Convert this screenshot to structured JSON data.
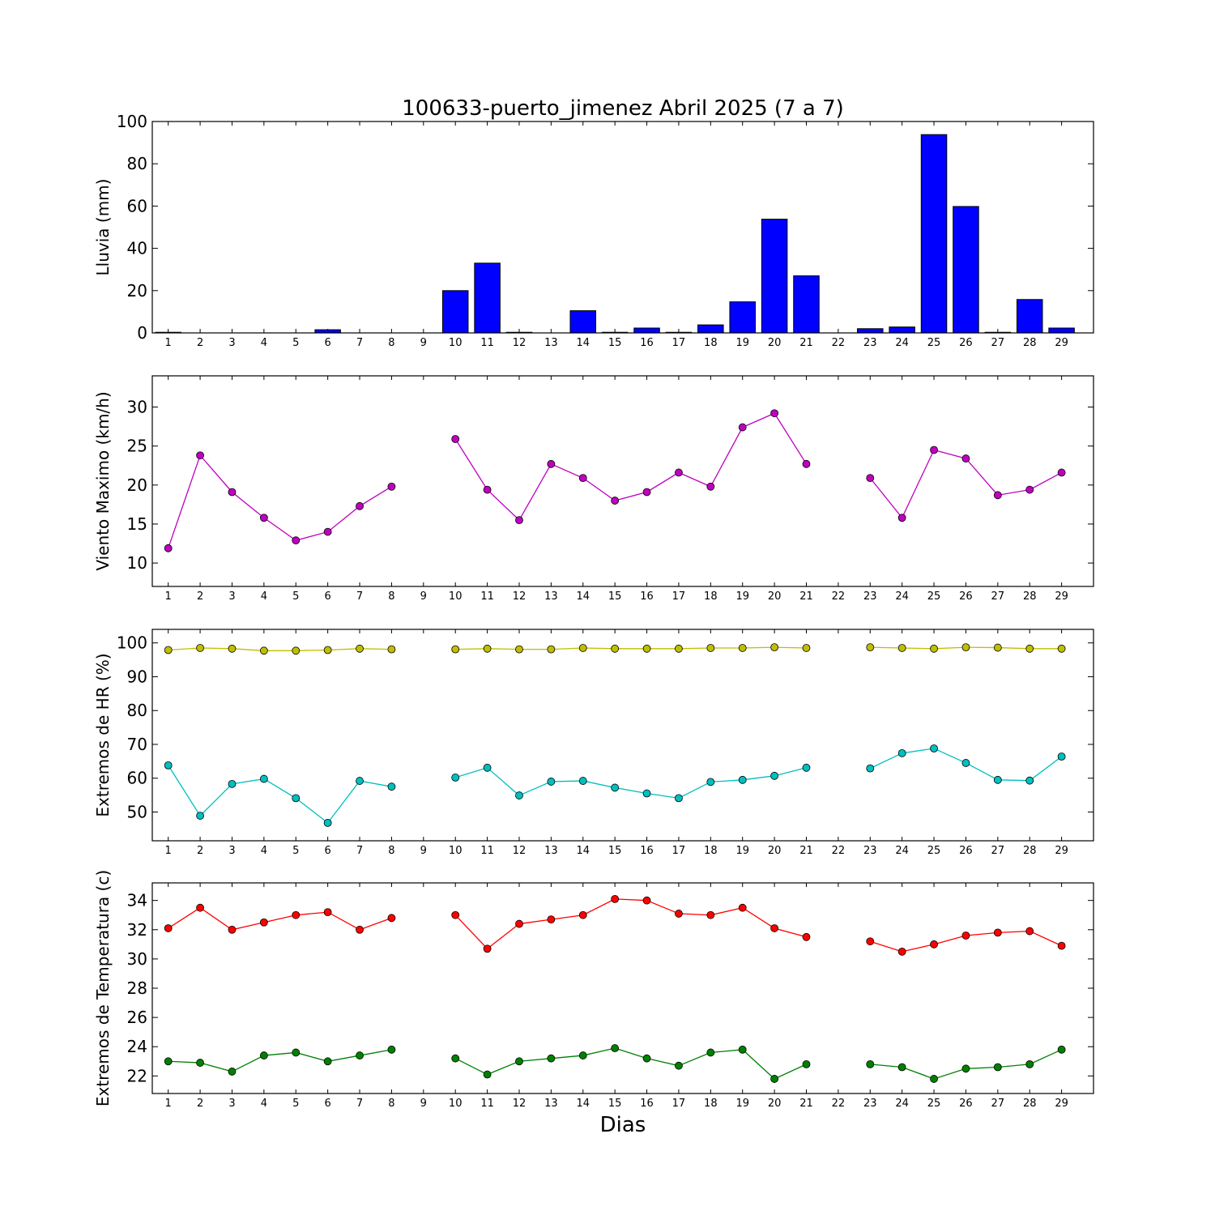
{
  "chart_data": {
    "title": "100633-puerto_jimenez Abril 2025  (7 a 7)",
    "xlabel": "Dias",
    "days": [
      1,
      2,
      3,
      4,
      5,
      6,
      7,
      8,
      9,
      10,
      11,
      12,
      13,
      14,
      15,
      16,
      17,
      18,
      19,
      20,
      21,
      22,
      23,
      24,
      25,
      26,
      27,
      28,
      29
    ],
    "panels": [
      {
        "type": "bar",
        "ylabel": "Lluvia (mm)",
        "ylim": [
          0,
          100
        ],
        "yticks": [
          0,
          20,
          40,
          60,
          80,
          100
        ],
        "series": [
          {
            "color": "#0000ff",
            "values": [
              0.3,
              0,
              0,
              0,
              0,
              1.5,
              0,
              0,
              0,
              20,
              33,
              0.3,
              0,
              10.5,
              0.3,
              2.3,
              0.3,
              3.8,
              14.7,
              53.8,
              27,
              0,
              2,
              2.8,
              93.8,
              59.8,
              0.3,
              15.8,
              2.3
            ]
          }
        ]
      },
      {
        "type": "line",
        "ylabel": "Viento Maximo (km/h)",
        "ylim": [
          7,
          34
        ],
        "yticks": [
          10,
          15,
          20,
          25,
          30
        ],
        "series": [
          {
            "color": "#bf00bf",
            "values": [
              11.9,
              23.8,
              19.1,
              15.8,
              12.9,
              14,
              17.3,
              19.8,
              null,
              25.9,
              19.4,
              15.5,
              22.7,
              20.9,
              18,
              19.1,
              21.6,
              19.8,
              27.4,
              29.2,
              22.7,
              null,
              20.9,
              15.8,
              24.5,
              23.4,
              18.7,
              19.4,
              21.6
            ]
          }
        ]
      },
      {
        "type": "line",
        "ylabel": "Extremos de HR (%)",
        "ylim": [
          41.5,
          104
        ],
        "yticks": [
          50,
          60,
          70,
          80,
          90,
          100
        ],
        "series": [
          {
            "color": "#bfbf00",
            "values": [
              97.9,
              98.5,
              98.3,
              97.7,
              97.7,
              97.9,
              98.3,
              98.1,
              null,
              98.1,
              98.3,
              98.1,
              98.1,
              98.5,
              98.3,
              98.3,
              98.3,
              98.5,
              98.5,
              98.7,
              98.5,
              null,
              98.7,
              98.5,
              98.3,
              98.7,
              98.6,
              98.3,
              98.3
            ]
          },
          {
            "color": "#00bfbf",
            "values": [
              63.8,
              48.9,
              58.3,
              59.8,
              54.1,
              46.8,
              59.2,
              57.5,
              null,
              60.2,
              63.1,
              54.9,
              59,
              59.2,
              57.2,
              55.5,
              54.1,
              58.9,
              59.5,
              60.7,
              63.1,
              null,
              62.9,
              67.4,
              68.8,
              64.5,
              59.5,
              59.3,
              66.4
            ]
          }
        ]
      },
      {
        "type": "line",
        "ylabel": "Extremos de Temperatura (c)",
        "ylim": [
          20.8,
          35.2
        ],
        "yticks": [
          22,
          24,
          26,
          28,
          30,
          32,
          34
        ],
        "series": [
          {
            "color": "#ff0000",
            "values": [
              32.1,
              33.5,
              32,
              32.5,
              33,
              33.2,
              32,
              32.8,
              null,
              33,
              30.7,
              32.4,
              32.7,
              33,
              34.1,
              34,
              33.1,
              33,
              33.5,
              32.1,
              31.5,
              null,
              31.2,
              30.5,
              31,
              31.6,
              31.8,
              31.9,
              30.9
            ]
          },
          {
            "color": "#008000",
            "values": [
              23,
              22.9,
              22.3,
              23.4,
              23.6,
              23,
              23.4,
              23.8,
              null,
              23.2,
              22.1,
              23,
              23.2,
              23.4,
              23.9,
              23.2,
              22.7,
              23.6,
              23.8,
              21.8,
              22.8,
              null,
              22.8,
              22.6,
              21.8,
              22.5,
              22.6,
              22.8,
              23.8
            ]
          }
        ]
      }
    ]
  }
}
